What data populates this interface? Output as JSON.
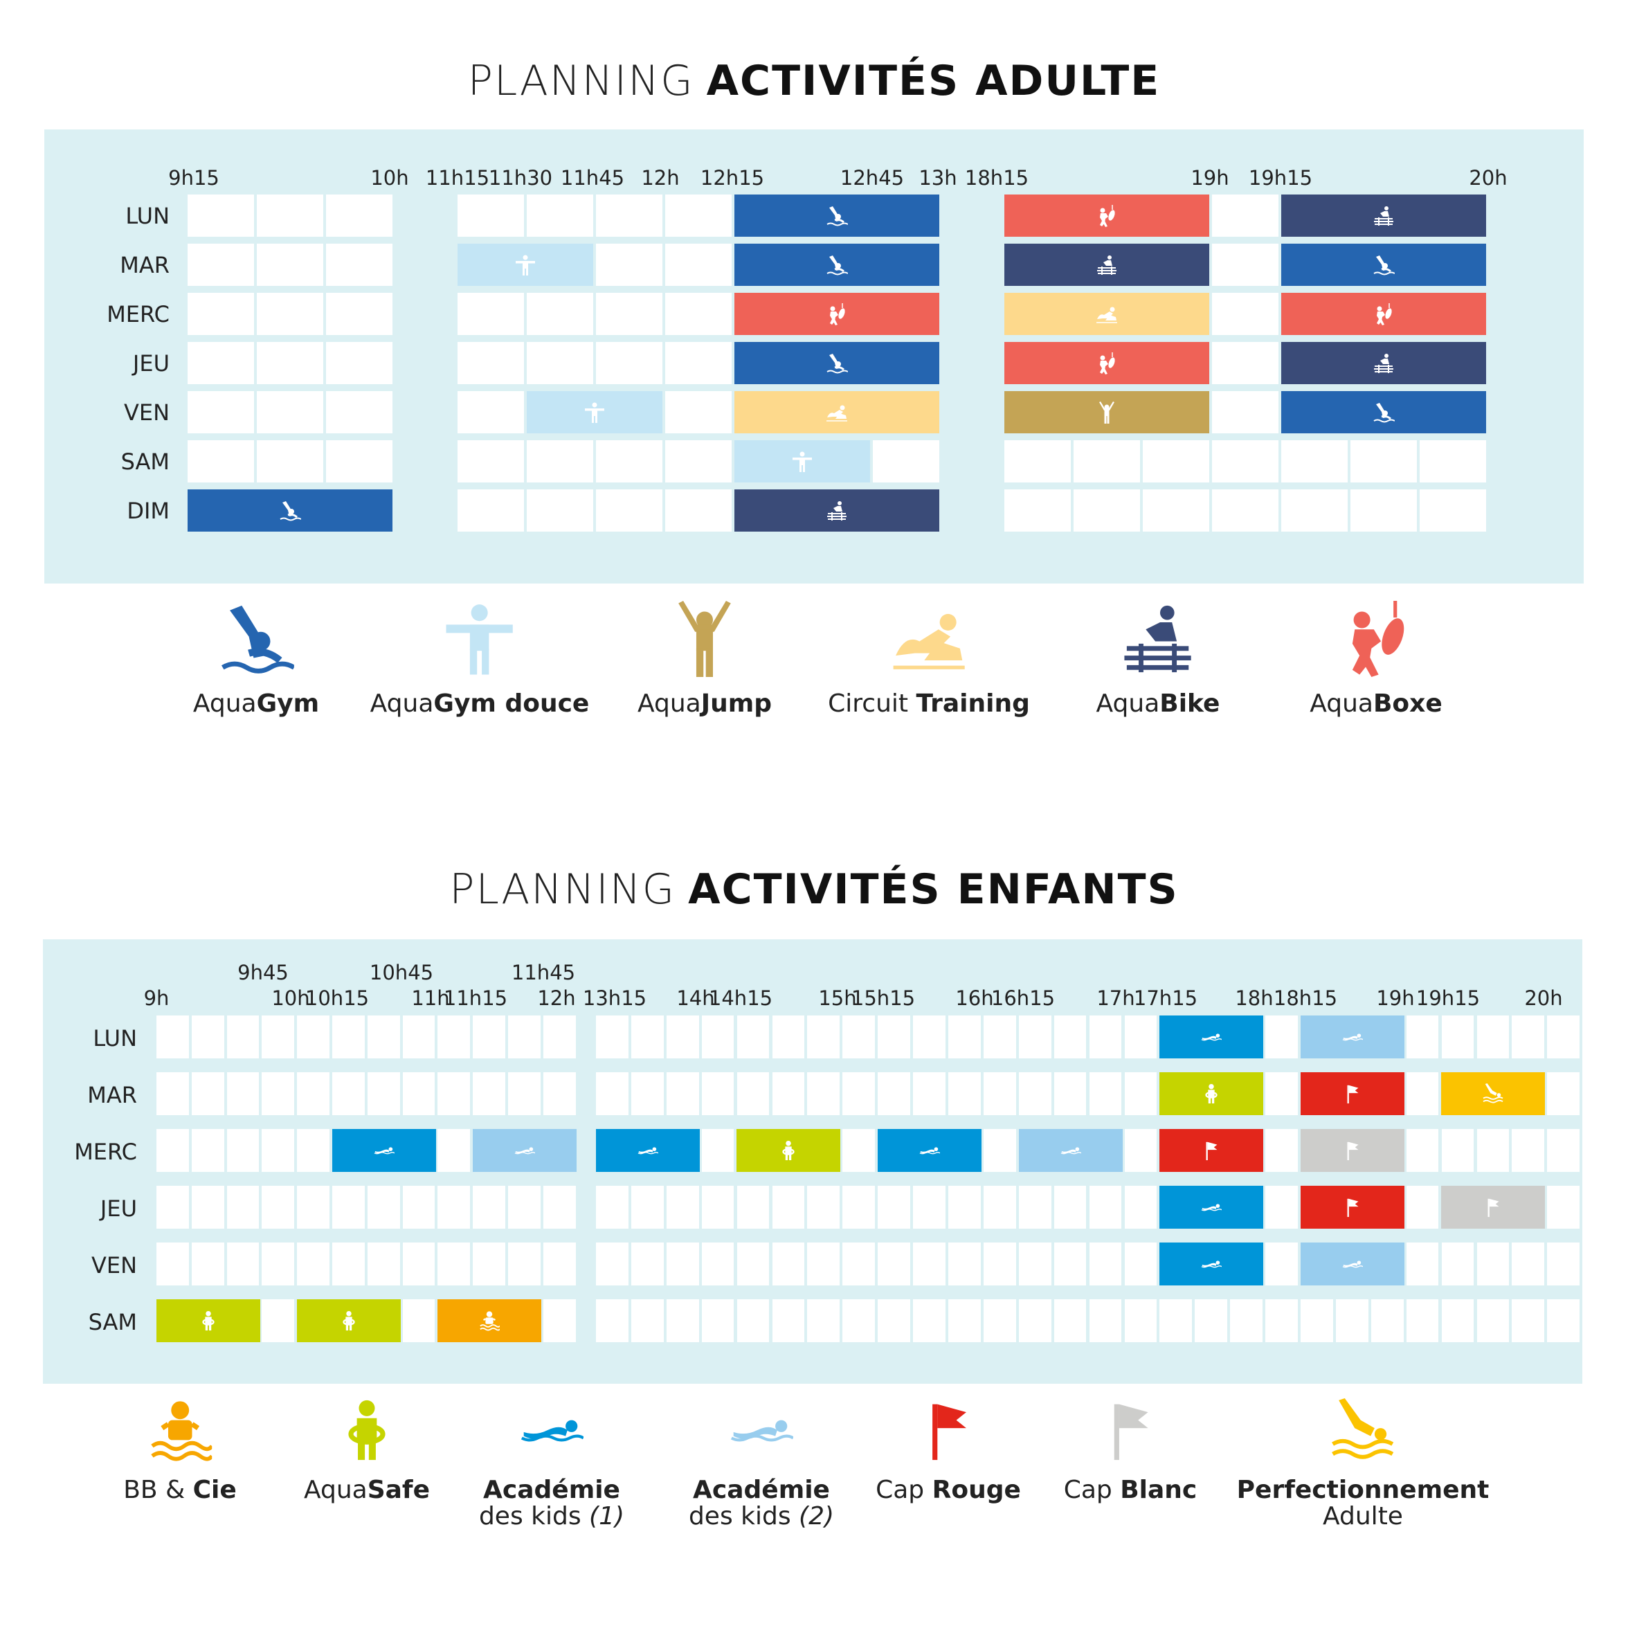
{
  "adult": {
    "title_light": "PLANNING",
    "title_bold": "ACTIVITÉS ADULTE",
    "days": [
      "LUN",
      "MAR",
      "MERC",
      "JEU",
      "VEN",
      "SAM",
      "DIM"
    ],
    "time_labels": [
      "9h15",
      "10h",
      "11h15",
      "11h30",
      "11h45",
      "12h",
      "12h15",
      "12h45",
      "13h",
      "18h15",
      "19h",
      "19h15",
      "20h"
    ],
    "schedule": [
      {
        "day": 0,
        "activity": "aquagym",
        "slot": "12h15-13h"
      },
      {
        "day": 0,
        "activity": "aquaboxe",
        "slot": "18h15-19h"
      },
      {
        "day": 0,
        "activity": "aquabike",
        "slot": "19h15-20h"
      },
      {
        "day": 1,
        "activity": "aquagym_douce",
        "slot": "11h15-11h45"
      },
      {
        "day": 1,
        "activity": "aquagym",
        "slot": "12h15-13h"
      },
      {
        "day": 1,
        "activity": "aquabike",
        "slot": "18h15-19h"
      },
      {
        "day": 1,
        "activity": "aquagym",
        "slot": "19h15-20h"
      },
      {
        "day": 2,
        "activity": "aquaboxe",
        "slot": "12h15-13h"
      },
      {
        "day": 2,
        "activity": "circuit_training",
        "slot": "18h15-19h"
      },
      {
        "day": 2,
        "activity": "aquaboxe",
        "slot": "19h15-20h"
      },
      {
        "day": 3,
        "activity": "aquagym",
        "slot": "12h15-13h"
      },
      {
        "day": 3,
        "activity": "aquaboxe",
        "slot": "18h15-19h"
      },
      {
        "day": 3,
        "activity": "aquabike",
        "slot": "19h15-20h"
      },
      {
        "day": 4,
        "activity": "aquagym_douce",
        "slot": "11h30-12h"
      },
      {
        "day": 4,
        "activity": "circuit_training",
        "slot": "12h15-13h"
      },
      {
        "day": 4,
        "activity": "aquajump",
        "slot": "18h15-19h"
      },
      {
        "day": 4,
        "activity": "aquagym",
        "slot": "19h15-20h"
      },
      {
        "day": 5,
        "activity": "aquagym_douce",
        "slot": "12h15-12h45"
      },
      {
        "day": 6,
        "activity": "aquagym",
        "slot": "9h15-10h"
      },
      {
        "day": 6,
        "activity": "aquabike",
        "slot": "12h15-13h"
      }
    ],
    "legend": [
      {
        "key": "aquagym",
        "light": "Aqua",
        "bold": "Gym",
        "icon": "swimmer-wave-icon",
        "color": "#2565b0"
      },
      {
        "key": "aquagym_douce",
        "light": "Aqua",
        "bold": "Gym douce",
        "icon": "standing-arms-out-icon",
        "color": "#c3e5f5"
      },
      {
        "key": "aquajump",
        "light": "Aqua",
        "bold": "Jump",
        "icon": "jumping-person-icon",
        "color": "#c4a455"
      },
      {
        "key": "circuit_training",
        "light": "Circuit ",
        "bold": "Training",
        "icon": "circuit-training-icon",
        "color": "#fdd98c"
      },
      {
        "key": "aquabike",
        "light": "Aqua",
        "bold": "Bike",
        "icon": "aquabike-icon",
        "color": "#3a4b78"
      },
      {
        "key": "aquaboxe",
        "light": "Aqua",
        "bold": "Boxe",
        "icon": "boxing-bag-icon",
        "color": "#ef6257"
      }
    ]
  },
  "kids": {
    "title_light": "PLANNING",
    "title_bold": "ACTIVITÉS ENFANTS",
    "days": [
      "LUN",
      "MAR",
      "MERC",
      "JEU",
      "VEN",
      "SAM"
    ],
    "time_labels_top": [
      "9h45",
      "10h45",
      "11h45"
    ],
    "time_labels": [
      "9h",
      "10h",
      "10h15",
      "11h",
      "11h15",
      "12h",
      "13h15",
      "14h",
      "14h15",
      "15h",
      "15h15",
      "16h",
      "16h15",
      "17h",
      "17h15",
      "18h",
      "18h15",
      "19h",
      "19h15",
      "20h"
    ],
    "schedule": [
      {
        "day": 0,
        "activity": "academie1",
        "slot": "17h15-18h"
      },
      {
        "day": 0,
        "activity": "academie2",
        "slot": "18h15-19h"
      },
      {
        "day": 1,
        "activity": "aquasafe",
        "slot": "17h15-18h"
      },
      {
        "day": 1,
        "activity": "cap_rouge",
        "slot": "18h15-19h"
      },
      {
        "day": 1,
        "activity": "perfectionnement",
        "slot": "19h15-20h"
      },
      {
        "day": 2,
        "activity": "academie1",
        "slot": "10h15-11h"
      },
      {
        "day": 2,
        "activity": "academie2",
        "slot": "11h15-12h"
      },
      {
        "day": 2,
        "activity": "academie1",
        "slot": "13h15-14h"
      },
      {
        "day": 2,
        "activity": "aquasafe",
        "slot": "14h15-15h"
      },
      {
        "day": 2,
        "activity": "academie1",
        "slot": "15h15-16h"
      },
      {
        "day": 2,
        "activity": "academie2",
        "slot": "16h15-17h"
      },
      {
        "day": 2,
        "activity": "cap_rouge",
        "slot": "17h15-18h"
      },
      {
        "day": 2,
        "activity": "cap_blanc",
        "slot": "18h15-19h"
      },
      {
        "day": 3,
        "activity": "academie1",
        "slot": "17h15-18h"
      },
      {
        "day": 3,
        "activity": "cap_rouge",
        "slot": "18h15-19h"
      },
      {
        "day": 3,
        "activity": "cap_blanc",
        "slot": "19h15-20h"
      },
      {
        "day": 4,
        "activity": "academie1",
        "slot": "17h15-18h"
      },
      {
        "day": 4,
        "activity": "academie2",
        "slot": "18h15-19h"
      },
      {
        "day": 5,
        "activity": "aquasafe",
        "slot": "9h-9h45"
      },
      {
        "day": 5,
        "activity": "aquasafe",
        "slot": "10h-10h45"
      },
      {
        "day": 5,
        "activity": "bb_cie",
        "slot": "11h-11h45"
      }
    ],
    "legend": [
      {
        "key": "bb_cie",
        "light": "BB & ",
        "bold": "Cie",
        "sub": "",
        "sub_it": "",
        "icon": "child-float-icon",
        "color": "#f7a600"
      },
      {
        "key": "aquasafe",
        "light": "Aqua",
        "bold": "Safe",
        "sub": "",
        "sub_it": "",
        "icon": "child-ring-icon",
        "color": "#c5d400"
      },
      {
        "key": "academie1",
        "light": "",
        "bold": "Académie",
        "sub": "des kids ",
        "sub_it": "(1)",
        "icon": "swimmer-crawl-icon",
        "color": "#0095d8"
      },
      {
        "key": "academie2",
        "light": "",
        "bold": "Académie",
        "sub": "des kids ",
        "sub_it": "(2)",
        "icon": "swimmer-crawl-light-icon",
        "color": "#98cdee"
      },
      {
        "key": "cap_rouge",
        "light": "Cap ",
        "bold": "Rouge",
        "sub": "",
        "sub_it": "",
        "icon": "red-flag-icon",
        "color": "#e3261b"
      },
      {
        "key": "cap_blanc",
        "light": "Cap ",
        "bold": "Blanc",
        "sub": "",
        "sub_it": "",
        "icon": "white-flag-icon",
        "color": "#cdcdcb"
      },
      {
        "key": "perfectionnement",
        "light": "",
        "bold": "Perfectionnement",
        "sub": "Adulte",
        "sub_it": "",
        "icon": "diver-icon",
        "color": "#fbc300"
      }
    ]
  }
}
